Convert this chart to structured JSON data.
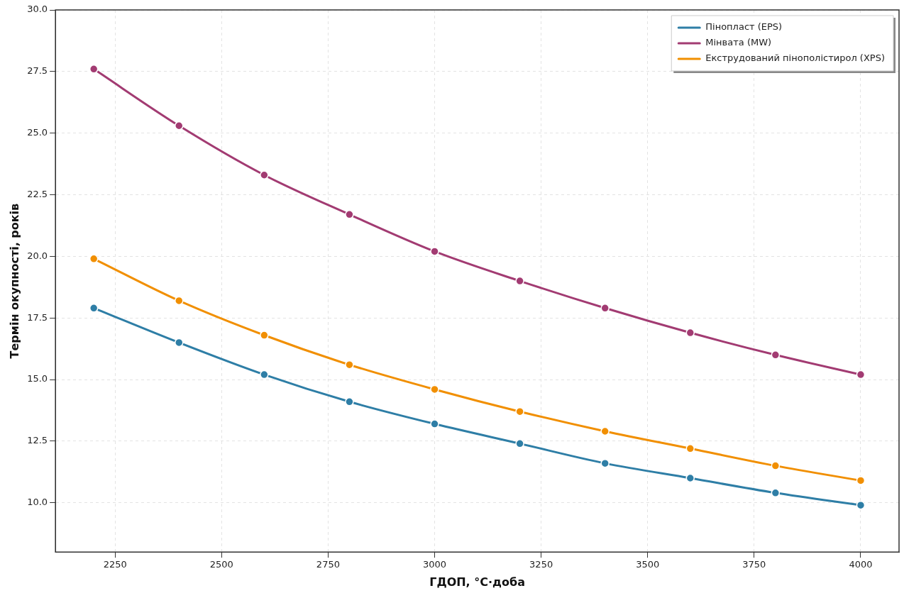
{
  "chart_data": {
    "type": "line",
    "xlabel": "ГДОП, °C·доба",
    "ylabel": "Термін окупності, років",
    "x": [
      2200,
      2400,
      2600,
      2800,
      3000,
      3200,
      3400,
      3600,
      3800,
      4000
    ],
    "series": [
      {
        "name": "Пінопласт (EPS)",
        "color": "#2e7ea6",
        "values": [
          17.9,
          16.5,
          15.2,
          14.1,
          13.2,
          12.4,
          11.6,
          11.0,
          10.4,
          9.9
        ]
      },
      {
        "name": "Мінвата (MW)",
        "color": "#a23b72",
        "values": [
          27.6,
          25.3,
          23.3,
          21.7,
          20.2,
          19.0,
          17.9,
          16.9,
          16.0,
          15.2
        ]
      },
      {
        "name": "Екструдований пінополістирол (XPS)",
        "color": "#f18f01",
        "values": [
          19.9,
          18.2,
          16.8,
          15.6,
          14.6,
          13.7,
          12.9,
          12.2,
          11.5,
          10.9
        ]
      }
    ],
    "xlim": [
      2110,
      4090
    ],
    "xticks": [
      2250,
      2500,
      2750,
      3000,
      3250,
      3500,
      3750,
      4000
    ],
    "ylim": [
      8.0,
      30.0
    ],
    "yticks": [
      {
        "value": 10,
        "label": "10.0"
      },
      {
        "value": 12.5,
        "label": "12.5"
      },
      {
        "value": 15,
        "label": "15.0"
      },
      {
        "value": 17.5,
        "label": "17.5"
      },
      {
        "value": 20,
        "label": "20.0"
      },
      {
        "value": 22.5,
        "label": "22.5"
      },
      {
        "value": 25,
        "label": "25.0"
      },
      {
        "value": 27.5,
        "label": "27.5"
      },
      {
        "value": 30,
        "label": "30.0"
      }
    ],
    "grid": true,
    "legend": "top right",
    "marker": "circle",
    "line_style": "solid"
  }
}
